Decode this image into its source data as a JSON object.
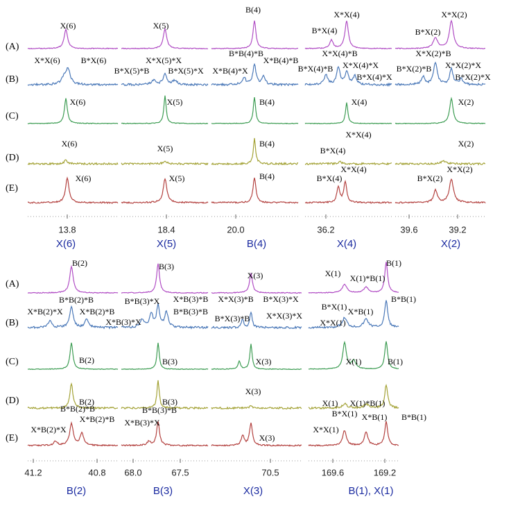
{
  "figure": {
    "blocks": [
      {
        "row_labels": [
          "(A)",
          "(B)",
          "(C)",
          "(D)",
          "(E)"
        ],
        "panels": [
          {
            "title": "X(6)",
            "ticks": [
              "13.8"
            ],
            "labels": [
              "X(6)",
              "X*X(6)",
              "B*X(6)",
              "X(6)",
              "X(6)",
              "X(6)"
            ]
          },
          {
            "title": "X(5)",
            "ticks": [
              "18.4"
            ],
            "labels": [
              "X(5)",
              "X*X(5)*X",
              "B*X(5)*B",
              "B*X(5)*X",
              "X(5)",
              "X(5)",
              "X(5)"
            ]
          },
          {
            "title": "B(4)",
            "ticks": [
              "20.0"
            ],
            "labels": [
              "B(4)",
              "B*B(4)*B",
              "X*B(4)*X",
              "X*B(4)*B",
              "B(4)",
              "B(4)",
              "B(4)"
            ]
          },
          {
            "title": "X(4)",
            "ticks": [
              "36.2"
            ],
            "labels": [
              "X*X(4)",
              "B*X(4)",
              "X*X(4)*B",
              "B*X(4)*B",
              "X*X(4)*X",
              "B*X(4)*X",
              "X(4)",
              "X*X(4)",
              "B*X(4)",
              "X*X(4)",
              "B*X(4)"
            ]
          },
          {
            "title": "X(2)",
            "ticks": [
              "39.6",
              "39.2"
            ],
            "labels": [
              "X*X(2)",
              "B*X(2)",
              "X*X(2)*B",
              "B*X(2)*B",
              "X*X(2)*X",
              "B*X(2)*X",
              "X(2)",
              "X(2)",
              "X*X(2)",
              "B*X(2)"
            ]
          }
        ]
      },
      {
        "row_labels": [
          "(A)",
          "(B)",
          "(C)",
          "(D)",
          "(E)"
        ],
        "panels": [
          {
            "title": "B(2)",
            "ticks": [
              "41.2",
              "40.8"
            ],
            "labels": [
              "B(2)",
              "B*B(2)*B",
              "X*B(2)*X",
              "X*B(2)*B",
              "B(2)",
              "B(2)",
              "B*B(2)*B",
              "X*B(2)*X",
              "X*B(2)*B"
            ]
          },
          {
            "title": "B(3)",
            "ticks": [
              "68.0",
              "67.5"
            ],
            "labels": [
              "B(3)",
              "B*B(3)*X",
              "X*B(3)*B",
              "X*B(3)*X",
              "B*B(3)*B",
              "B(3)",
              "B(3)",
              "B*B(3)*B",
              "X*B(3)*X"
            ]
          },
          {
            "title": "X(3)",
            "ticks": [
              "70.5"
            ],
            "labels": [
              "X(3)",
              "X*X(3)*B",
              "B*X(3)*X",
              "B*X(3)*B",
              "X*X(3)*X",
              "X(3)",
              "X(3)",
              "X(3)"
            ]
          },
          {
            "title": "B(1), X(1)",
            "ticks": [
              "169.6",
              "169.2"
            ],
            "labels": [
              "X(1)",
              "X(1)*B(1)",
              "B(1)",
              "B*X(1)",
              "B*B(1)",
              "X*X(1)",
              "X*B(1)",
              "X(1)",
              "B(1)",
              "X(1)",
              "X(1)*B(1)",
              "B*X(1)",
              "B*B(1)",
              "X*X(1)",
              "X*B(1)"
            ]
          }
        ]
      }
    ]
  }
}
